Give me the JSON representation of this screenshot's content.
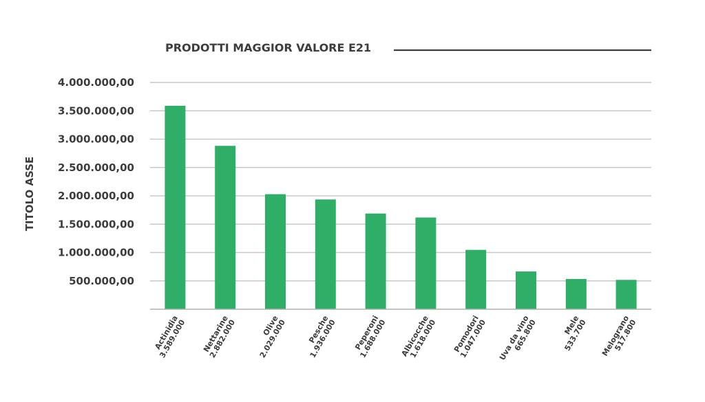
{
  "chart_data": {
    "type": "bar",
    "title": "PRODOTTI MAGGIOR VALORE E21",
    "xlabel": "",
    "ylabel": "TITOLO ASSE",
    "ylim": [
      0,
      4000000
    ],
    "y_ticks": [
      {
        "value": 500000,
        "label": "500.000,00"
      },
      {
        "value": 1000000,
        "label": "1.000.000,00"
      },
      {
        "value": 1500000,
        "label": "1.500.000,00"
      },
      {
        "value": 2000000,
        "label": "2.000.000,00"
      },
      {
        "value": 2500000,
        "label": "2.500.000,00"
      },
      {
        "value": 3000000,
        "label": "3.000.000,00"
      },
      {
        "value": 3500000,
        "label": "3.500.000,00"
      },
      {
        "value": 4000000,
        "label": "4.000.000,00"
      }
    ],
    "grid": true,
    "bar_color": "#2eae66",
    "categories": [
      {
        "name": "Actinidia",
        "value_label": "3.589.000"
      },
      {
        "name": "Nettarine",
        "value_label": "2.882.000"
      },
      {
        "name": "Olive",
        "value_label": "2.029.000"
      },
      {
        "name": "Pesche",
        "value_label": "1.936.000"
      },
      {
        "name": "Peperoni",
        "value_label": "1.688.000"
      },
      {
        "name": "Albicocche",
        "value_label": "1.618.000"
      },
      {
        "name": "Pomodori",
        "value_label": "1.047.000"
      },
      {
        "name": "Uva da vino",
        "value_label": "665.800"
      },
      {
        "name": "Mele",
        "value_label": "533.700"
      },
      {
        "name": "Melograno",
        "value_label": "517.800"
      }
    ],
    "values": [
      3589000,
      2882000,
      2029000,
      1936000,
      1688000,
      1618000,
      1047000,
      665800,
      533700,
      517800
    ]
  }
}
